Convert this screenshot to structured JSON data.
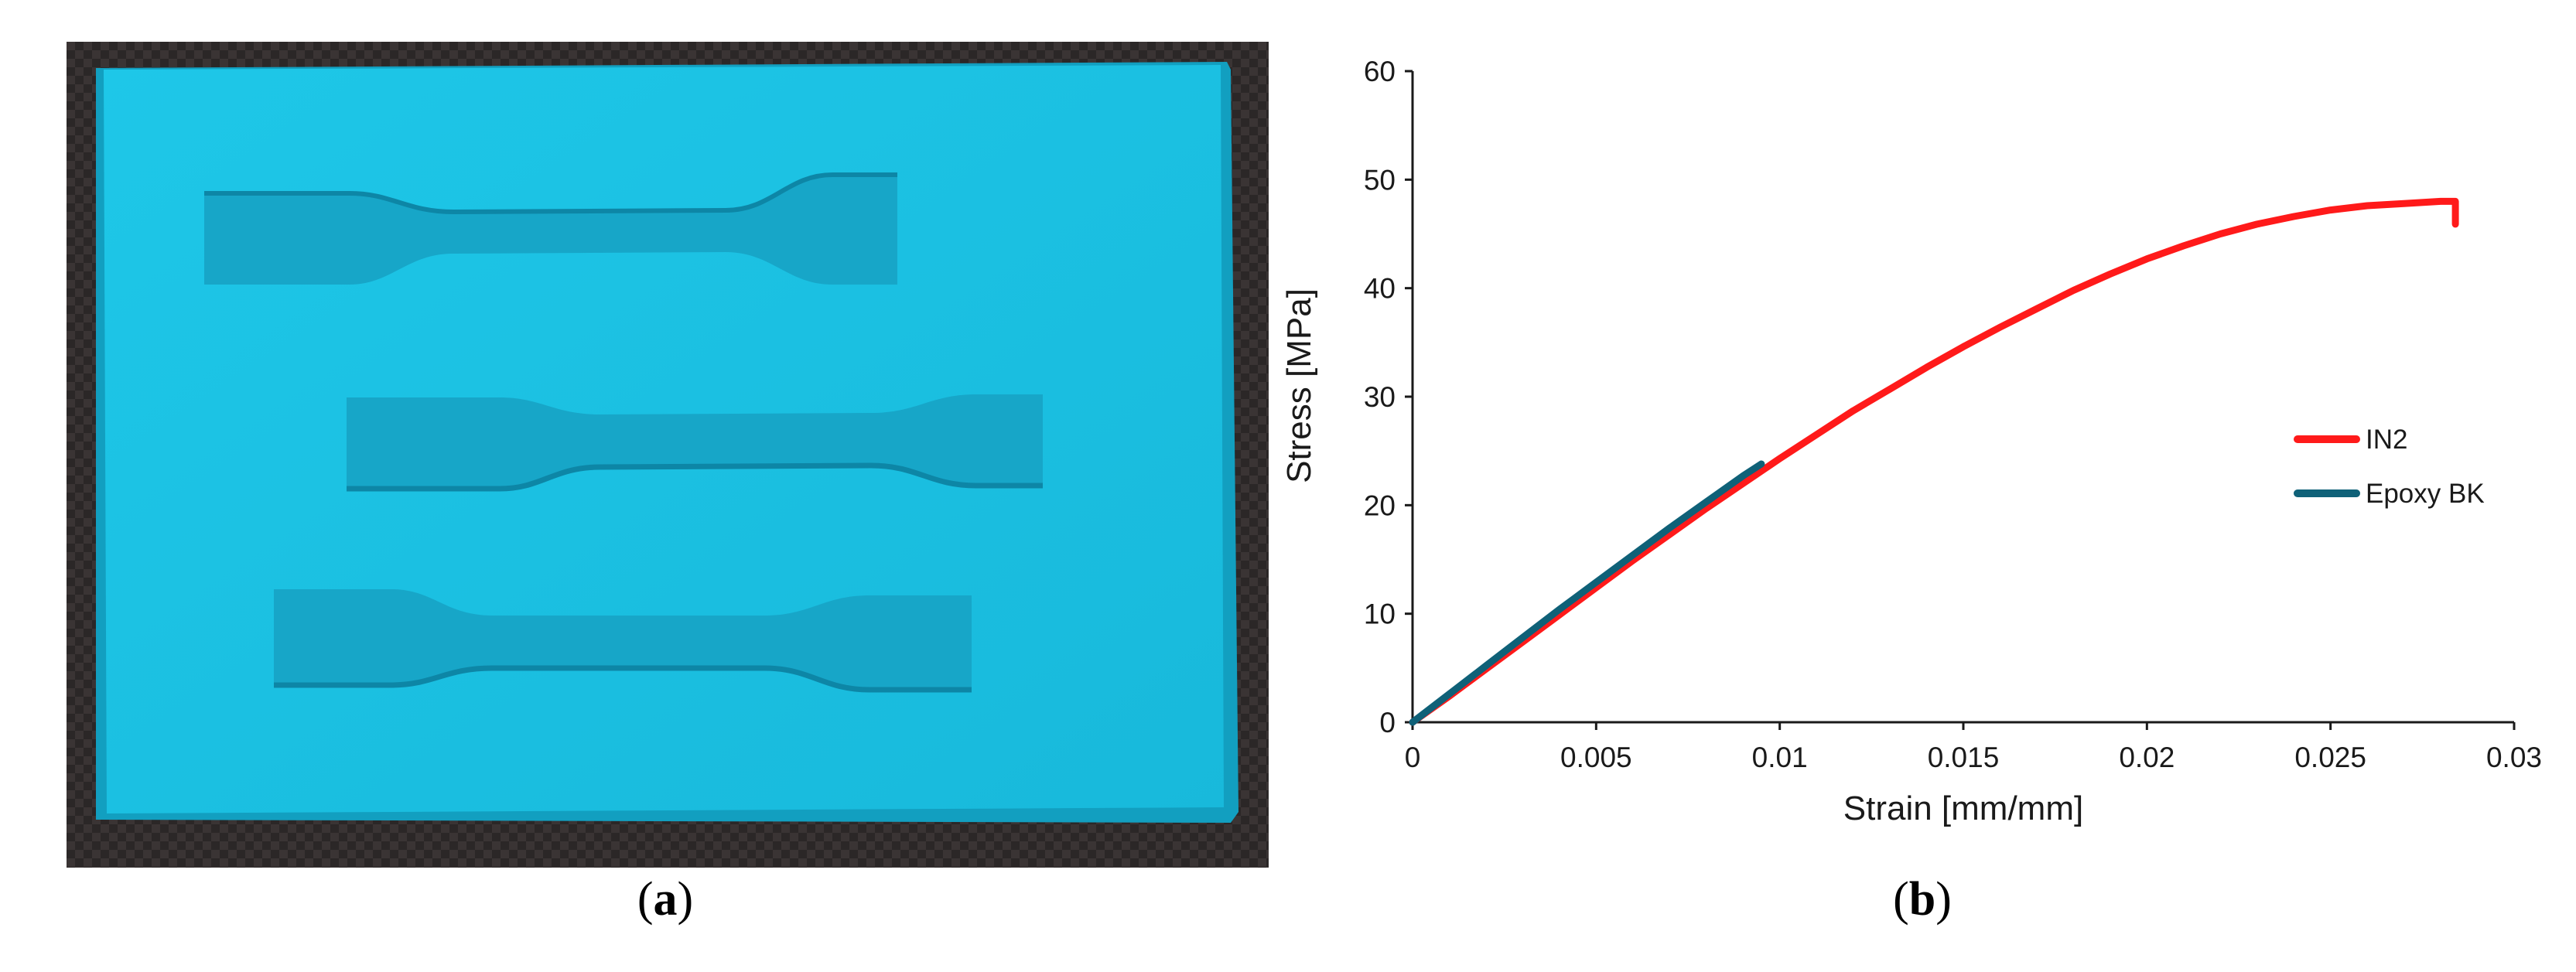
{
  "panel_a": {
    "caption_letter": "a"
  },
  "panel_b": {
    "caption_letter": "b"
  },
  "colors": {
    "mold_top": "#1cc4e6",
    "mold_edge": "#14a9cc",
    "cavity": "#18aecf",
    "background": "#2a2626",
    "series_IN2": "#ff1a1a",
    "series_epoxy": "#0f6178"
  },
  "chart_data": {
    "type": "line",
    "title": "",
    "xlabel": "Strain [mm/mm]",
    "ylabel": "Stress [MPa]",
    "xlim": [
      0,
      0.03
    ],
    "ylim": [
      0,
      60
    ],
    "xticks": [
      0,
      0.005,
      0.01,
      0.015,
      0.02,
      0.025,
      0.03
    ],
    "xtick_labels": [
      "0",
      "0.005",
      "0.01",
      "0.015",
      "0.02",
      "0.025",
      "0.03"
    ],
    "yticks": [
      0,
      10,
      20,
      30,
      40,
      50,
      60
    ],
    "ytick_labels": [
      "0",
      "10",
      "20",
      "30",
      "40",
      "50",
      "60"
    ],
    "grid": false,
    "legend_position": "right",
    "series": [
      {
        "name": "IN2",
        "color": "#ff1a1a",
        "x": [
          0,
          0.001,
          0.002,
          0.003,
          0.004,
          0.005,
          0.006,
          0.007,
          0.008,
          0.009,
          0.01,
          0.011,
          0.012,
          0.013,
          0.014,
          0.015,
          0.016,
          0.017,
          0.018,
          0.019,
          0.02,
          0.021,
          0.022,
          0.023,
          0.024,
          0.025,
          0.026,
          0.027,
          0.028,
          0.0284,
          0.0284
        ],
        "y": [
          0,
          2.4,
          4.9,
          7.4,
          9.9,
          12.4,
          14.9,
          17.3,
          19.7,
          22.0,
          24.3,
          26.5,
          28.7,
          30.7,
          32.7,
          34.6,
          36.4,
          38.1,
          39.8,
          41.3,
          42.7,
          43.9,
          45.0,
          45.9,
          46.6,
          47.2,
          47.6,
          47.8,
          48.0,
          48.0,
          45.9
        ]
      },
      {
        "name": "Epoxy BK",
        "color": "#0f6178",
        "x": [
          0,
          0.001,
          0.002,
          0.003,
          0.004,
          0.005,
          0.006,
          0.007,
          0.008,
          0.009,
          0.0095
        ],
        "y": [
          0,
          2.6,
          5.2,
          7.8,
          10.4,
          12.9,
          15.4,
          17.9,
          20.3,
          22.7,
          23.8
        ]
      }
    ]
  }
}
